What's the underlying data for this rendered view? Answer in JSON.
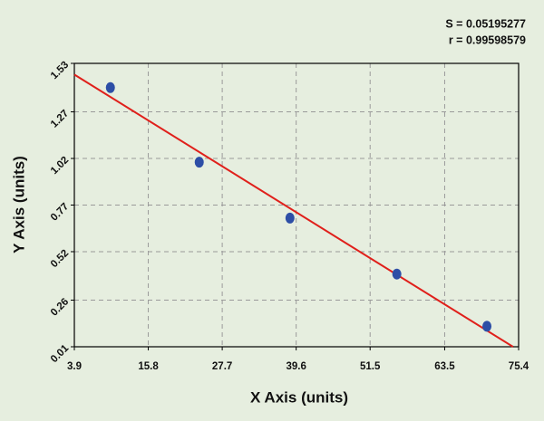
{
  "chart_data": {
    "type": "scatter",
    "annotations": [
      "S = 0.05195277",
      "r = 0.99598579"
    ],
    "x_label": "X Axis (units)",
    "y_label": "Y Axis (units)",
    "x": [
      9.7,
      24.0,
      38.6,
      55.8,
      70.3
    ],
    "values": [
      1.4,
      1.0,
      0.7,
      0.4,
      0.12
    ],
    "color": "#2d4ea6",
    "fit": {
      "x": [
        3.9,
        74.5
      ],
      "values": [
        1.47,
        0.01
      ],
      "color": "#e0201b"
    },
    "xlim": [
      3.9,
      75.4
    ],
    "xticks": [
      3.9,
      15.8,
      27.7,
      39.6,
      51.5,
      63.5,
      75.4
    ],
    "ylim": [
      0.01,
      1.53
    ],
    "yticks": [
      0.01,
      0.26,
      0.52,
      0.77,
      1.02,
      1.27,
      1.53
    ],
    "grid": true
  }
}
